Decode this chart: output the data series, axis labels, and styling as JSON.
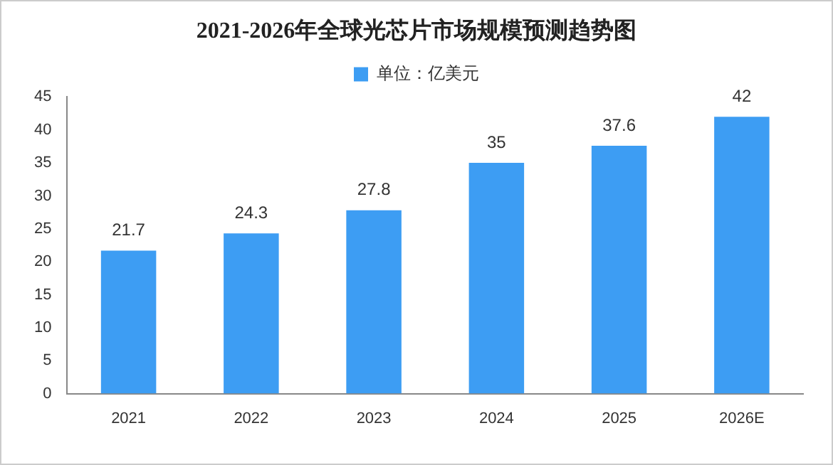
{
  "chart_data": {
    "type": "bar",
    "title": "2021-2026年全球光芯片市场规模预测趋势图",
    "categories": [
      "2021",
      "2022",
      "2023",
      "2024",
      "2025",
      "2026E"
    ],
    "series": [
      {
        "name": "单位：亿美元",
        "color": "#3d9df3",
        "values": [
          21.7,
          24.3,
          27.8,
          35,
          37.6,
          42
        ]
      }
    ],
    "ylim": [
      0,
      45
    ],
    "yticks": [
      0,
      5,
      10,
      15,
      20,
      25,
      30,
      35,
      40,
      45
    ],
    "grid": false,
    "legend": "top",
    "data_labels": true
  }
}
